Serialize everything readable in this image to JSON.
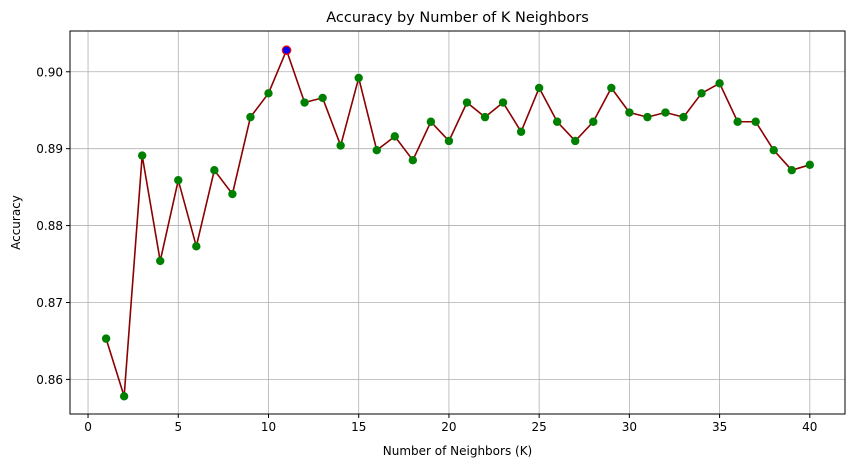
{
  "chart_data": {
    "type": "line",
    "title": "Accuracy by Number of K Neighbors",
    "xlabel": "Number of Neighbors (K)",
    "ylabel": "Accuracy",
    "xlim": [
      -1,
      41.95
    ],
    "ylim": [
      0.8555,
      0.9053
    ],
    "x_ticks": [
      0,
      5,
      10,
      15,
      20,
      25,
      30,
      35,
      40
    ],
    "x_tick_labels": [
      "0",
      "5",
      "10",
      "15",
      "20",
      "25",
      "30",
      "35",
      "40"
    ],
    "y_ticks": [
      0.86,
      0.87,
      0.88,
      0.89,
      0.9
    ],
    "y_tick_labels": [
      "0.86",
      "0.87",
      "0.88",
      "0.89",
      "0.90"
    ],
    "grid": true,
    "line_color": "#8b0000",
    "marker_color": "#008000",
    "highlight_color": "#0000ff",
    "highlight_x": 11,
    "x": [
      1,
      2,
      3,
      4,
      5,
      6,
      7,
      8,
      9,
      10,
      11,
      12,
      13,
      14,
      15,
      16,
      17,
      18,
      19,
      20,
      21,
      22,
      23,
      24,
      25,
      26,
      27,
      28,
      29,
      30,
      31,
      32,
      33,
      34,
      35,
      36,
      37,
      38,
      39,
      40
    ],
    "series": [
      {
        "values": [
          0.8653,
          0.8578,
          0.8891,
          0.8754,
          0.8859,
          0.8773,
          0.8872,
          0.8841,
          0.8941,
          0.8972,
          0.9028,
          0.896,
          0.8966,
          0.8904,
          0.8992,
          0.8898,
          0.8916,
          0.8885,
          0.8935,
          0.891,
          0.896,
          0.8941,
          0.896,
          0.8922,
          0.8979,
          0.8935,
          0.891,
          0.8935,
          0.8979,
          0.8947,
          0.8941,
          0.8947,
          0.8941,
          0.8972,
          0.8985,
          0.8935,
          0.8935,
          0.8898,
          0.8872,
          0.8879
        ]
      }
    ]
  }
}
